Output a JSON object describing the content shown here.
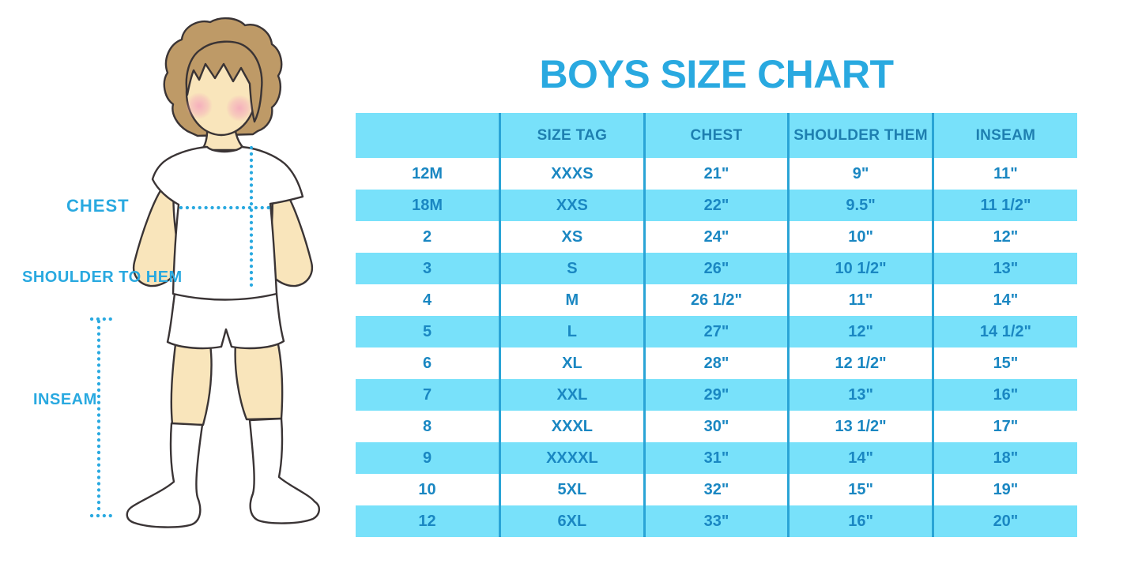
{
  "title": "BOYS SIZE CHART",
  "figure": {
    "chest_label": "CHEST",
    "shoulder_to_hem_label": "SHOULDER TO HEM",
    "inseam_label": "INSEAM"
  },
  "colors": {
    "accent_blue": "#29A9E0",
    "row_cyan": "#78E1FA",
    "divider_blue": "#2AA4D6",
    "table_text_blue": "#1A87C2",
    "header_text_blue": "#1E7FB0",
    "skin": "#F9E5BB",
    "hair_brown": "#BE9A67",
    "cheek_pink": "#F4A6BC",
    "outline": "#3A3435",
    "background": "#FFFFFF"
  },
  "chart_data": {
    "type": "table",
    "title": "BOYS SIZE CHART",
    "headers": [
      "",
      "SIZE TAG",
      "CHEST",
      "SHOULDER THEM",
      "INSEAM"
    ],
    "rows": [
      [
        "12M",
        "XXXS",
        "21\"",
        "9\"",
        "11\""
      ],
      [
        "18M",
        "XXS",
        "22\"",
        "9.5\"",
        "11 1/2\""
      ],
      [
        "2",
        "XS",
        "24\"",
        "10\"",
        "12\""
      ],
      [
        "3",
        "S",
        "26\"",
        "10 1/2\"",
        "13\""
      ],
      [
        "4",
        "M",
        "26 1/2\"",
        "11\"",
        "14\""
      ],
      [
        "5",
        "L",
        "27\"",
        "12\"",
        "14 1/2\""
      ],
      [
        "6",
        "XL",
        "28\"",
        "12 1/2\"",
        "15\""
      ],
      [
        "7",
        "XXL",
        "29\"",
        "13\"",
        "16\""
      ],
      [
        "8",
        "XXXL",
        "30\"",
        "13 1/2\"",
        "17\""
      ],
      [
        "9",
        "XXXXL",
        "31\"",
        "14\"",
        "18\""
      ],
      [
        "10",
        "5XL",
        "32\"",
        "15\"",
        "19\""
      ],
      [
        "12",
        "6XL",
        "33\"",
        "16\"",
        "20\""
      ]
    ],
    "units": "inches",
    "layout": "header row cyan; body rows alternate white/cyan starting white; 5 equal columns with blue vertical dividers"
  }
}
